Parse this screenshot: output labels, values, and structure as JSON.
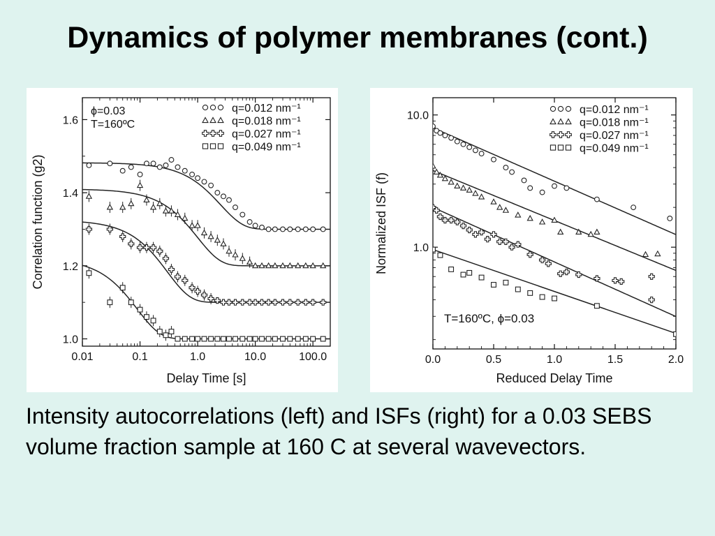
{
  "slide": {
    "title": "Dynamics of polymer membranes (cont.)",
    "caption": "Intensity autocorrelations (left) and ISFs (right) for a 0.03 SEBS volume fraction sample at 160 C at several wavevectors."
  },
  "chart_data": [
    {
      "type": "scatter",
      "xscale": "log",
      "xlabel": "Delay Time [s]",
      "ylabel": "Correlation function (g2)",
      "xlim": [
        0.01,
        200
      ],
      "ylim": [
        0.98,
        1.66
      ],
      "xticks": [
        0.01,
        0.1,
        1.0,
        10.0,
        100.0
      ],
      "xtick_labels": [
        "0.01",
        "0.1",
        "1.0",
        "10.0",
        "100.0"
      ],
      "yticks": [
        1.0,
        1.2,
        1.4,
        1.6
      ],
      "ytick_labels": [
        "1.0",
        "1.2",
        "1.4",
        "1.6"
      ],
      "annotation_lines": [
        "ϕ=0.03",
        "T=160ºC"
      ],
      "legend_position": "top-right",
      "series": [
        {
          "name": "q=0.012 nm⁻¹",
          "marker": "circle",
          "x": [
            0.013,
            0.03,
            0.05,
            0.07,
            0.1,
            0.13,
            0.17,
            0.22,
            0.28,
            0.35,
            0.45,
            0.6,
            0.8,
            1.0,
            1.3,
            1.7,
            2.2,
            2.8,
            3.5,
            4.5,
            6,
            8,
            10,
            13,
            17,
            22,
            30,
            40,
            55,
            75,
            100,
            150
          ],
          "y": [
            1.475,
            1.48,
            1.46,
            1.47,
            1.45,
            1.48,
            1.48,
            1.47,
            1.475,
            1.49,
            1.47,
            1.46,
            1.45,
            1.44,
            1.43,
            1.42,
            1.4,
            1.39,
            1.38,
            1.36,
            1.34,
            1.32,
            1.31,
            1.305,
            1.3,
            1.3,
            1.3,
            1.3,
            1.3,
            1.3,
            1.3,
            1.3
          ],
          "fit": {
            "high": 1.482,
            "low": 1.3,
            "tau": 2.5
          }
        },
        {
          "name": "q=0.018 nm⁻¹",
          "marker": "triangle",
          "x": [
            0.013,
            0.03,
            0.05,
            0.07,
            0.1,
            0.13,
            0.17,
            0.22,
            0.28,
            0.35,
            0.45,
            0.6,
            0.8,
            1.0,
            1.3,
            1.7,
            2.2,
            2.8,
            3.5,
            4.5,
            6,
            8,
            10,
            13,
            17,
            22,
            30,
            40,
            55,
            75,
            100,
            150
          ],
          "y": [
            1.39,
            1.36,
            1.36,
            1.37,
            1.42,
            1.38,
            1.36,
            1.37,
            1.35,
            1.35,
            1.34,
            1.33,
            1.31,
            1.31,
            1.29,
            1.28,
            1.27,
            1.26,
            1.24,
            1.23,
            1.22,
            1.21,
            1.2,
            1.2,
            1.2,
            1.2,
            1.2,
            1.2,
            1.2,
            1.2,
            1.2,
            1.2
          ],
          "fit": {
            "high": 1.41,
            "low": 1.2,
            "tau": 1.0
          }
        },
        {
          "name": "q=0.027 nm⁻¹",
          "marker": "plus",
          "x": [
            0.013,
            0.03,
            0.05,
            0.07,
            0.1,
            0.13,
            0.17,
            0.22,
            0.28,
            0.35,
            0.45,
            0.6,
            0.8,
            1.0,
            1.3,
            1.7,
            2.2,
            2.8,
            3.5,
            4.5,
            6,
            8,
            10,
            13,
            17,
            22,
            30,
            40,
            55,
            75,
            100,
            150
          ],
          "y": [
            1.3,
            1.3,
            1.28,
            1.26,
            1.25,
            1.25,
            1.25,
            1.24,
            1.22,
            1.19,
            1.17,
            1.16,
            1.14,
            1.13,
            1.12,
            1.11,
            1.105,
            1.1,
            1.1,
            1.1,
            1.1,
            1.1,
            1.1,
            1.1,
            1.1,
            1.1,
            1.1,
            1.1,
            1.1,
            1.1,
            1.1,
            1.1
          ],
          "fit": {
            "high": 1.325,
            "low": 1.1,
            "tau": 0.3
          }
        },
        {
          "name": "q=0.049 nm⁻¹",
          "marker": "square",
          "x": [
            0.013,
            0.03,
            0.05,
            0.07,
            0.1,
            0.13,
            0.17,
            0.22,
            0.28,
            0.35,
            0.45,
            0.6,
            0.8,
            1.0,
            1.3,
            1.7,
            2.2,
            2.8,
            3.5,
            4.5,
            6,
            8,
            10,
            13,
            17,
            22,
            30,
            40,
            55,
            75,
            100,
            150
          ],
          "y": [
            1.18,
            1.1,
            1.14,
            1.1,
            1.08,
            1.06,
            1.05,
            1.02,
            1.01,
            1.02,
            1.0,
            1.0,
            1.0,
            1.0,
            1.0,
            1.0,
            1.0,
            1.0,
            1.0,
            1.0,
            1.0,
            1.0,
            1.0,
            1.0,
            1.0,
            1.0,
            1.0,
            1.0,
            1.0,
            1.0,
            1.0,
            1.0
          ],
          "fit": {
            "high": 1.22,
            "low": 1.0,
            "tau": 0.09
          }
        }
      ]
    },
    {
      "type": "scatter",
      "yscale": "log",
      "xlabel": "Reduced Delay Time",
      "ylabel": "Normalized ISF (f)",
      "xlim": [
        0.0,
        2.0
      ],
      "ylim": [
        0.17,
        13.5
      ],
      "xticks": [
        0.0,
        0.5,
        1.0,
        1.5,
        2.0
      ],
      "xtick_labels": [
        "0.0",
        "0.5",
        "1.0",
        "1.5",
        "2.0"
      ],
      "yticks": [
        1.0,
        10.0
      ],
      "ytick_labels": [
        "1.0",
        "10.0"
      ],
      "annotation": "T=160ºC, ϕ=0.03",
      "legend_position": "top-right",
      "series": [
        {
          "name": "q=0.012 nm⁻¹",
          "marker": "circle",
          "x": [
            0.0,
            0.03,
            0.06,
            0.1,
            0.15,
            0.2,
            0.25,
            0.3,
            0.35,
            0.4,
            0.5,
            0.6,
            0.65,
            0.75,
            0.8,
            0.9,
            1.0,
            1.1,
            1.35,
            1.65,
            1.95
          ],
          "y": [
            8.2,
            7.6,
            7.3,
            7.0,
            6.7,
            6.3,
            6.0,
            5.7,
            5.4,
            5.1,
            4.6,
            4.0,
            3.7,
            3.2,
            2.8,
            2.6,
            2.9,
            2.8,
            2.3,
            2.0,
            1.65
          ],
          "fit": {
            "a": 8.0,
            "k": 0.93
          }
        },
        {
          "name": "q=0.018 nm⁻¹",
          "marker": "triangle",
          "x": [
            0.0,
            0.03,
            0.06,
            0.1,
            0.15,
            0.2,
            0.25,
            0.3,
            0.35,
            0.4,
            0.5,
            0.55,
            0.6,
            0.7,
            0.8,
            0.9,
            1.0,
            1.05,
            1.2,
            1.3,
            1.35,
            1.75,
            1.85
          ],
          "y": [
            4.1,
            3.7,
            3.5,
            3.3,
            3.1,
            2.9,
            2.8,
            2.7,
            2.55,
            2.4,
            2.2,
            2.0,
            1.9,
            1.75,
            1.65,
            1.55,
            1.6,
            1.3,
            1.3,
            1.25,
            1.3,
            0.88,
            0.89
          ],
          "fit": {
            "a": 3.8,
            "k": 0.87
          }
        },
        {
          "name": "q=0.027 nm⁻¹",
          "marker": "plus",
          "x": [
            0.0,
            0.03,
            0.06,
            0.1,
            0.15,
            0.2,
            0.25,
            0.3,
            0.35,
            0.4,
            0.45,
            0.5,
            0.55,
            0.6,
            0.65,
            0.7,
            0.8,
            0.9,
            0.95,
            1.05,
            1.1,
            1.2,
            1.35,
            1.5,
            1.55,
            1.8,
            1.8
          ],
          "y": [
            2.0,
            1.9,
            1.7,
            1.6,
            1.6,
            1.55,
            1.45,
            1.35,
            1.25,
            1.3,
            1.15,
            1.25,
            1.1,
            1.1,
            1.0,
            1.05,
            0.88,
            0.8,
            0.75,
            0.63,
            0.65,
            0.62,
            0.58,
            0.56,
            0.55,
            0.6,
            0.4
          ],
          "fit": {
            "a": 2.0,
            "k": 0.95
          }
        },
        {
          "name": "q=0.049 nm⁻¹",
          "marker": "square",
          "x": [
            0.0,
            0.06,
            0.15,
            0.25,
            0.3,
            0.4,
            0.5,
            0.6,
            0.7,
            0.8,
            0.9,
            1.0,
            1.35,
            2.0
          ],
          "y": [
            0.96,
            0.87,
            0.68,
            0.62,
            0.64,
            0.59,
            0.52,
            0.54,
            0.48,
            0.45,
            0.42,
            0.41,
            0.36,
            0.22
          ],
          "fit": {
            "a": 0.96,
            "k": 0.73
          }
        }
      ]
    }
  ]
}
